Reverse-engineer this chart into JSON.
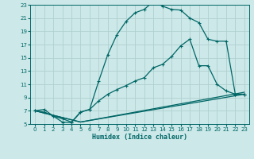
{
  "xlabel": "Humidex (Indice chaleur)",
  "bg_color": "#cce8e8",
  "grid_color": "#b0d0d0",
  "line_color": "#006666",
  "xlim": [
    -0.5,
    23.5
  ],
  "ylim": [
    5,
    23
  ],
  "xticks": [
    0,
    1,
    2,
    3,
    4,
    5,
    6,
    7,
    8,
    9,
    10,
    11,
    12,
    13,
    14,
    15,
    16,
    17,
    18,
    19,
    20,
    21,
    22,
    23
  ],
  "yticks": [
    5,
    7,
    9,
    11,
    13,
    15,
    17,
    19,
    21,
    23
  ],
  "line1": {
    "x": [
      0,
      1,
      2,
      3,
      4,
      5,
      6,
      7,
      8,
      9,
      10,
      11,
      12,
      13,
      14,
      15,
      16,
      17,
      18,
      19,
      20,
      21,
      22,
      23
    ],
    "y": [
      7.0,
      7.2,
      6.2,
      5.3,
      5.2,
      6.8,
      7.2,
      11.5,
      15.5,
      18.5,
      20.5,
      21.8,
      22.3,
      23.5,
      22.8,
      22.3,
      22.2,
      21.0,
      20.3,
      17.8,
      17.5,
      17.5,
      9.5,
      9.5
    ],
    "marker": true
  },
  "line2": {
    "x": [
      0,
      1,
      2,
      3,
      4,
      5,
      6,
      7,
      8,
      9,
      10,
      11,
      12,
      13,
      14,
      15,
      16,
      17,
      18,
      19,
      20,
      21,
      22,
      23
    ],
    "y": [
      7.0,
      6.8,
      6.2,
      5.8,
      5.3,
      6.8,
      7.2,
      8.5,
      9.5,
      10.2,
      10.8,
      11.5,
      12.0,
      13.5,
      14.0,
      15.2,
      16.8,
      17.8,
      13.8,
      13.8,
      11.0,
      10.0,
      9.5,
      9.5
    ],
    "marker": true
  },
  "line3": {
    "x": [
      0,
      5,
      23
    ],
    "y": [
      7.0,
      5.3,
      9.8
    ],
    "marker": false
  },
  "line4": {
    "x": [
      0,
      5,
      23
    ],
    "y": [
      7.0,
      5.3,
      9.5
    ],
    "marker": false
  }
}
